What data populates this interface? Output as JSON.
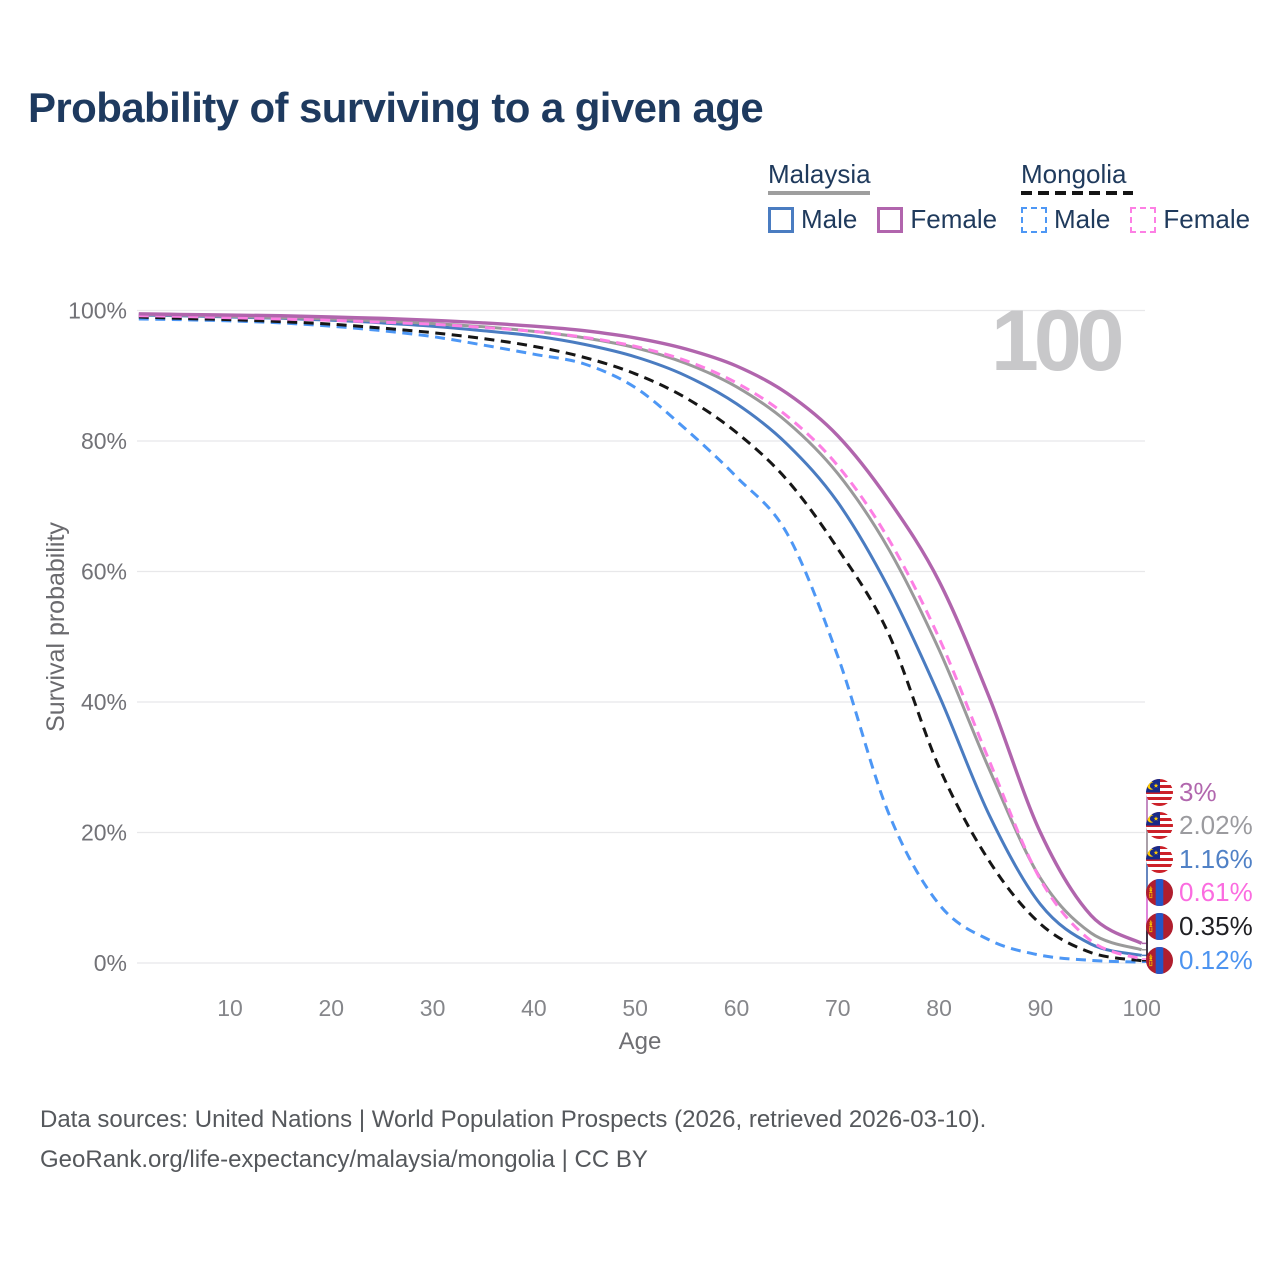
{
  "page": {
    "title": "Probability of surviving to a given age",
    "watermark": "100"
  },
  "legend": {
    "groups": [
      {
        "id": "malaysia",
        "title": "Malaysia",
        "underline_style": "solid",
        "underline_color": "#9e9e9e",
        "items": [
          {
            "label": "Male",
            "color": "#4a7cc1",
            "dash": false
          },
          {
            "label": "Female",
            "color": "#b165ad",
            "dash": false
          }
        ]
      },
      {
        "id": "mongolia",
        "title": "Mongolia",
        "underline_style": "dashed",
        "underline_color": "#141414",
        "items": [
          {
            "label": "Male",
            "color": "#4d97f5",
            "dash": true
          },
          {
            "label": "Female",
            "color": "#fd7fe4",
            "dash": true
          }
        ]
      }
    ]
  },
  "chart_data": {
    "type": "line",
    "title": "Probability of surviving to a given age",
    "xlabel": "Age",
    "ylabel": "Survival probability",
    "xlim": [
      1,
      100
    ],
    "ylim": [
      0,
      100
    ],
    "grid": "horizontal",
    "x_tick_values": [
      10,
      20,
      30,
      40,
      50,
      60,
      70,
      80,
      90,
      100
    ],
    "x_ticks": [
      "10",
      "20",
      "30",
      "40",
      "50",
      "60",
      "70",
      "80",
      "90",
      "100"
    ],
    "y_tick_values": [
      0,
      20,
      40,
      60,
      80,
      100
    ],
    "y_ticks": [
      "0%",
      "20%",
      "40%",
      "60%",
      "80%",
      "100%"
    ],
    "x": [
      1,
      5,
      10,
      15,
      20,
      25,
      30,
      35,
      40,
      45,
      50,
      55,
      60,
      65,
      70,
      75,
      80,
      85,
      90,
      95,
      100
    ],
    "series": [
      {
        "name": "Malaysia Female",
        "country": "Malaysia",
        "sex": "Female",
        "color": "#b165ad",
        "style": "solid",
        "flag": "malaysia",
        "end_label": "3%",
        "end_label_color": "#b167ae",
        "values": [
          99.5,
          99.4,
          99.3,
          99.2,
          99.0,
          98.8,
          98.5,
          98.1,
          97.6,
          96.9,
          95.8,
          94.1,
          91.5,
          87.3,
          80.8,
          71.0,
          58.5,
          40.5,
          20.0,
          7.3,
          3.0
        ]
      },
      {
        "name": "Malaysia",
        "country": "Malaysia",
        "sex": "Both",
        "color": "#9a9a9a",
        "style": "solid",
        "flag": "malaysia",
        "end_label": "2.02%",
        "end_label_color": "#9b9b9f",
        "values": [
          99.4,
          99.3,
          99.1,
          98.9,
          98.7,
          98.4,
          98.0,
          97.5,
          96.8,
          95.8,
          94.3,
          91.9,
          88.3,
          82.9,
          75.0,
          63.5,
          48.0,
          29.5,
          13.0,
          4.6,
          2.02
        ]
      },
      {
        "name": "Malaysia Male",
        "country": "Malaysia",
        "sex": "Male",
        "color": "#4a7cc1",
        "style": "solid",
        "flag": "malaysia",
        "end_label": "1.16%",
        "end_label_color": "#5081c6",
        "values": [
          99.3,
          99.2,
          99.0,
          98.8,
          98.5,
          98.1,
          97.6,
          96.9,
          96.1,
          94.8,
          92.9,
          90.0,
          85.7,
          79.5,
          70.6,
          57.5,
          41.0,
          22.5,
          9.0,
          2.9,
          1.16
        ]
      },
      {
        "name": "Mongolia Female",
        "country": "Mongolia",
        "sex": "Female",
        "color": "#fd7fe4",
        "style": "dashed",
        "flag": "mongolia",
        "end_label": "0.61%",
        "end_label_color": "#fb6ce0",
        "values": [
          99.2,
          99.1,
          98.9,
          98.7,
          98.5,
          98.2,
          97.9,
          97.4,
          96.8,
          95.9,
          94.5,
          92.3,
          88.9,
          83.8,
          76.2,
          65.0,
          49.8,
          30.8,
          12.8,
          3.4,
          0.61
        ]
      },
      {
        "name": "Mongolia",
        "country": "Mongolia",
        "sex": "Both",
        "color": "#161616",
        "style": "dashed",
        "flag": "mongolia",
        "end_label": "0.35%",
        "end_label_color": "#202024",
        "values": [
          99.0,
          98.8,
          98.6,
          98.3,
          97.9,
          97.3,
          96.6,
          95.7,
          94.5,
          92.8,
          90.3,
          86.6,
          81.3,
          74.0,
          63.5,
          50.5,
          30.0,
          15.5,
          6.0,
          1.6,
          0.35
        ]
      },
      {
        "name": "Mongolia Male",
        "country": "Mongolia",
        "sex": "Male",
        "color": "#4d97f5",
        "style": "dashed",
        "flag": "mongolia",
        "end_label": "0.12%",
        "end_label_color": "#4d94f0",
        "values": [
          98.7,
          98.6,
          98.4,
          98.1,
          97.6,
          96.9,
          96.0,
          94.7,
          93.3,
          91.8,
          88.2,
          81.8,
          74.5,
          65.8,
          47.0,
          23.0,
          9.0,
          3.5,
          1.2,
          0.4,
          0.12
        ]
      }
    ],
    "annotations": {
      "age_cursor": "100"
    },
    "legend_position": "top-right"
  },
  "footer": {
    "line1": "Data sources: United Nations | World Population Prospects (2026, retrieved 2026-03-10).",
    "line2": "GeoRank.org/life-expectancy/malaysia/mongolia | CC BY"
  }
}
